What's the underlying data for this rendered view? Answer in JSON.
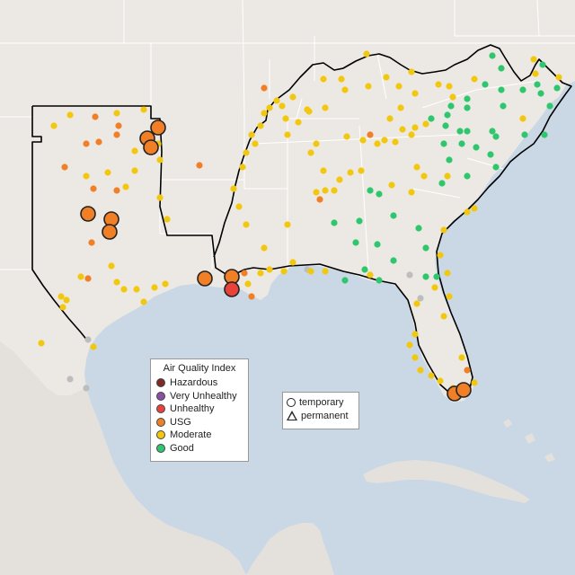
{
  "colors": {
    "water": "#cad8e6",
    "land": "#ece9e4",
    "mexico": "#e4e1dc",
    "state_border": "#ffffff",
    "region_border": "#000000",
    "hazardous": "#7e2b27",
    "very_unhealthy": "#8a4fa3",
    "unhealthy": "#e8423a",
    "usg": "#f07f26",
    "moderate": "#f2c80f",
    "good": "#2ec76e",
    "no_data": "#bdbdbd"
  },
  "aqi_legend": {
    "title": "Air Quality Index",
    "items": [
      {
        "label": "Hazardous",
        "level": "hazardous"
      },
      {
        "label": "Very Unhealthy",
        "level": "very_unhealthy"
      },
      {
        "label": "Unhealthy",
        "level": "unhealthy"
      },
      {
        "label": "USG",
        "level": "usg"
      },
      {
        "label": "Moderate",
        "level": "moderate"
      },
      {
        "label": "Good",
        "level": "good"
      }
    ]
  },
  "monitor_legend": {
    "temporary_label": "temporary",
    "permanent_label": "permanent"
  }
}
